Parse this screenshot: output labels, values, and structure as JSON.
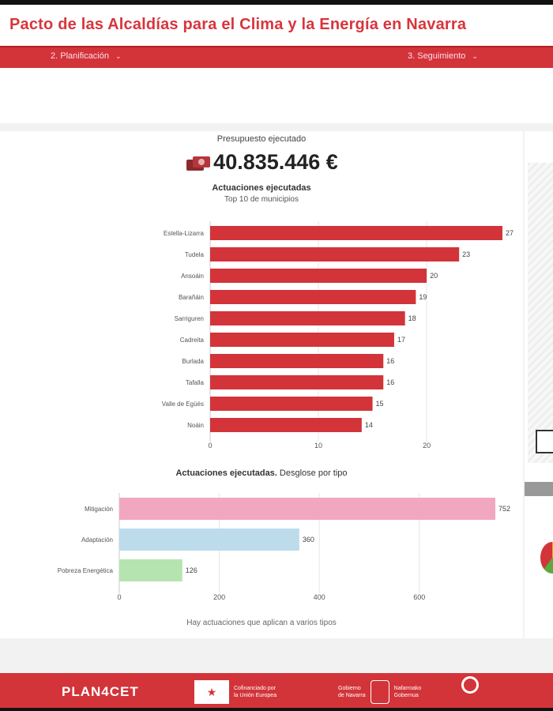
{
  "header": {
    "title": "Pacto de las Alcaldías para el Clima y la Energía en Navarra"
  },
  "nav": {
    "left_label": "2. Planificación",
    "right_label": "3. Seguimiento"
  },
  "summary": {
    "budget_label": "Presupuesto ejecutado",
    "budget_value": "40.835.446 €",
    "actions_title": "Actuaciones ejecutadas",
    "actions_subtitle": "Top 10 de municipios"
  },
  "chart2_heading": {
    "bold": "Actuaciones ejecutadas.",
    "rest": " Desglose por tipo"
  },
  "footnote": "Hay actuaciones que aplican a varios tipos",
  "chart_data": [
    {
      "type": "bar",
      "orientation": "horizontal",
      "title": "Actuaciones ejecutadas",
      "subtitle": "Top 10 de municipios",
      "categories": [
        "Estella-Lizarra",
        "Tudela",
        "Ansoáin",
        "Barañáin",
        "Sarriguren",
        "Cadreita",
        "Burlada",
        "Tafalla",
        "Valle de Egüés",
        "Noáin"
      ],
      "values": [
        27,
        23,
        20,
        19,
        18,
        17,
        16,
        16,
        15,
        14
      ],
      "value_labels": [
        "27",
        "23",
        "20",
        "19",
        "18",
        "17",
        "16",
        "16",
        "15",
        "14"
      ],
      "xlim": [
        0,
        27
      ],
      "xticks": [
        0,
        10,
        20
      ],
      "color": "#d23439"
    },
    {
      "type": "bar",
      "orientation": "horizontal",
      "title": "Actuaciones ejecutadas. Desglose por tipo",
      "categories": [
        "Mitigación",
        "Adaptación",
        "Pobreza Energética"
      ],
      "values": [
        752,
        360,
        126
      ],
      "value_labels": [
        "752",
        "360",
        "126"
      ],
      "colors": [
        "#f2a7c0",
        "#bcdcec",
        "#b5e4b0"
      ],
      "xlim": [
        0,
        752
      ],
      "xticks": [
        0,
        200,
        400,
        600
      ]
    }
  ],
  "footer": {
    "plancet": "PLAN4CET",
    "eu_text_1": "Cofinanciado por",
    "eu_text_2": "la Unión Europea",
    "gov_text_1": "Gobierno",
    "gov_text_2": "de Navarra",
    "gov_text_3": "Nafarroako",
    "gov_text_4": "Gobernua"
  },
  "colors": {
    "brand": "#d23439",
    "top10_bar": "#d23439"
  }
}
